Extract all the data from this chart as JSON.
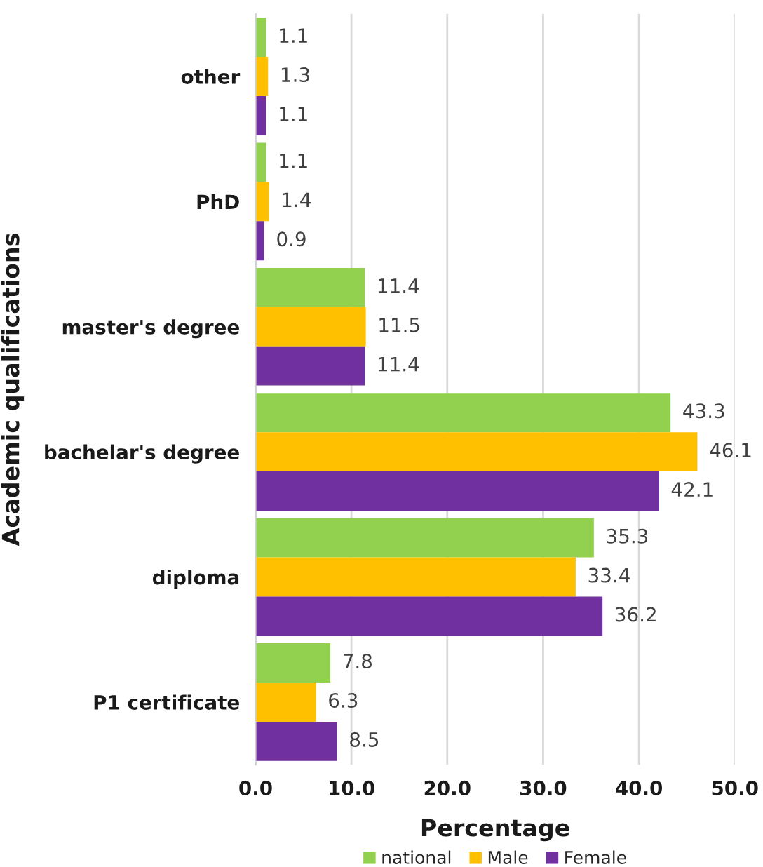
{
  "chart_data": {
    "type": "bar",
    "orientation": "horizontal",
    "categories": [
      "other",
      "PhD",
      "master's degree",
      "bachelar's degree",
      "diploma",
      "P1 certificate"
    ],
    "series": [
      {
        "name": "national",
        "color": "#92d050",
        "values": [
          1.1,
          1.1,
          11.4,
          43.3,
          35.3,
          7.8
        ]
      },
      {
        "name": "Male",
        "color": "#ffc000",
        "values": [
          1.3,
          1.4,
          11.5,
          46.1,
          33.4,
          6.3
        ]
      },
      {
        "name": "Female",
        "color": "#7030a0",
        "values": [
          1.1,
          0.9,
          11.4,
          42.1,
          36.2,
          8.5
        ]
      }
    ],
    "xlim": [
      0,
      50
    ],
    "xticks": [
      {
        "value": 0,
        "label": "0.0"
      },
      {
        "value": 10,
        "label": "10.0"
      },
      {
        "value": 20,
        "label": "20.0"
      },
      {
        "value": 30,
        "label": "30.0"
      },
      {
        "value": 40,
        "label": "40.0"
      },
      {
        "value": 50,
        "label": "50.0"
      }
    ],
    "xlabel": "Percentage",
    "ylabel": "Academic qualifications",
    "grid": "x",
    "legend": "bottom",
    "data_labels": true
  }
}
